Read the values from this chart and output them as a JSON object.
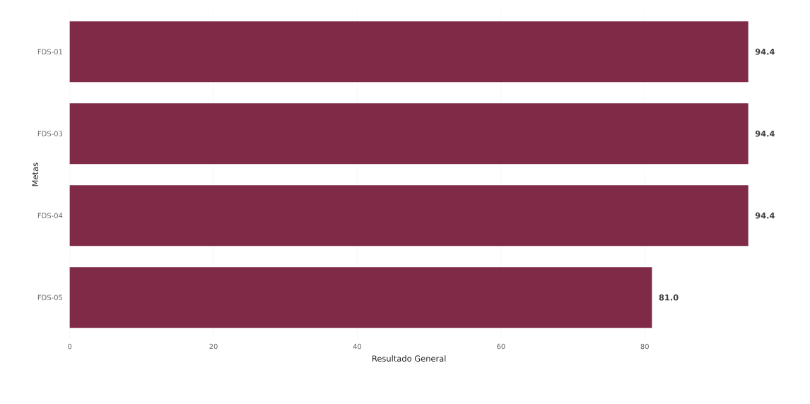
{
  "chart_data": {
    "type": "bar",
    "orientation": "horizontal",
    "xlabel": "Resultado General",
    "ylabel": "Metas",
    "categories": [
      "FDS-01",
      "FDS-03",
      "FDS-04",
      "FDS-05"
    ],
    "values": [
      94.4,
      94.4,
      94.4,
      81.0
    ],
    "color": "#7f2a46",
    "value_labels": [
      "94.4",
      "94.4",
      "94.4",
      "81.0"
    ],
    "xlim": [
      0,
      94.4
    ],
    "xticks": [
      0,
      20,
      40,
      60,
      80
    ],
    "grid": "x"
  }
}
